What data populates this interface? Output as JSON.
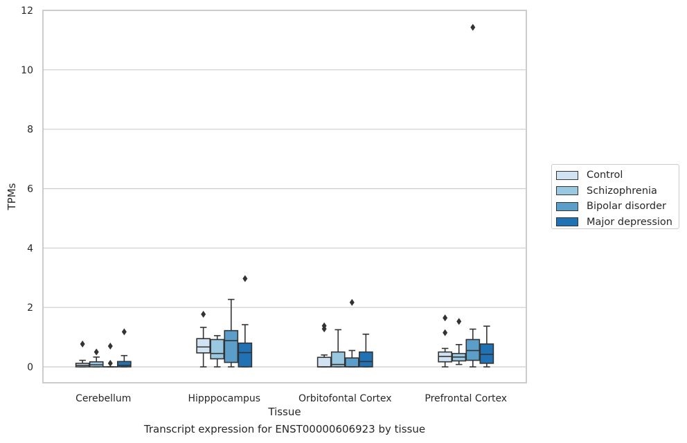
{
  "chart_data": {
    "type": "box",
    "caption": "Transcript expression for ENST00000606923 by tissue",
    "xlabel": "Tissue",
    "ylabel": "TPMs",
    "ylim": [
      -0.5,
      12
    ],
    "yticks": [
      "0",
      "2",
      "4",
      "6",
      "8",
      "10",
      "12"
    ],
    "categories": [
      "Cerebellum",
      "Hipppocampus",
      "Orbitofontal Cortex",
      "Prefrontal Cortex"
    ],
    "grid": "horizontal",
    "legend_position": "right",
    "series": [
      {
        "name": "Control",
        "color": "#d1e2f2",
        "boxes": [
          {
            "q1": 0.0,
            "median": 0.05,
            "q3": 0.12,
            "whisker_low": 0.0,
            "whisker_high": 0.22,
            "outliers": [
              0.77
            ]
          },
          {
            "q1": 0.47,
            "median": 0.67,
            "q3": 0.95,
            "whisker_low": 0.0,
            "whisker_high": 1.33,
            "outliers": [
              1.77
            ]
          },
          {
            "q1": 0.0,
            "median": 0.0,
            "q3": 0.32,
            "whisker_low": 0.0,
            "whisker_high": 0.4,
            "outliers": [
              1.28,
              1.38
            ]
          },
          {
            "q1": 0.17,
            "median": 0.35,
            "q3": 0.5,
            "whisker_low": 0.0,
            "whisker_high": 0.62,
            "outliers": [
              1.15,
              1.65
            ]
          }
        ]
      },
      {
        "name": "Schizophrenia",
        "color": "#9ac8e0",
        "boxes": [
          {
            "q1": 0.0,
            "median": 0.07,
            "q3": 0.17,
            "whisker_low": 0.0,
            "whisker_high": 0.33,
            "outliers": [
              0.5
            ]
          },
          {
            "q1": 0.27,
            "median": 0.45,
            "q3": 0.92,
            "whisker_low": 0.0,
            "whisker_high": 1.05,
            "outliers": []
          },
          {
            "q1": 0.0,
            "median": 0.08,
            "q3": 0.5,
            "whisker_low": 0.0,
            "whisker_high": 1.25,
            "outliers": []
          },
          {
            "q1": 0.2,
            "median": 0.33,
            "q3": 0.45,
            "whisker_low": 0.08,
            "whisker_high": 0.75,
            "outliers": [
              1.53
            ]
          }
        ]
      },
      {
        "name": "Bipolar disorder",
        "color": "#5a9ec9",
        "boxes": [
          {
            "q1": 0.0,
            "median": 0.0,
            "q3": 0.0,
            "whisker_low": 0.0,
            "whisker_high": 0.0,
            "outliers": [
              0.12,
              0.7
            ]
          },
          {
            "q1": 0.15,
            "median": 0.88,
            "q3": 1.22,
            "whisker_low": 0.0,
            "whisker_high": 2.27,
            "outliers": []
          },
          {
            "q1": 0.0,
            "median": 0.0,
            "q3": 0.3,
            "whisker_low": 0.0,
            "whisker_high": 0.55,
            "outliers": [
              2.17
            ]
          },
          {
            "q1": 0.22,
            "median": 0.55,
            "q3": 0.92,
            "whisker_low": 0.0,
            "whisker_high": 1.27,
            "outliers": [
              11.43
            ]
          }
        ]
      },
      {
        "name": "Major depression",
        "color": "#2171b5",
        "boxes": [
          {
            "q1": 0.0,
            "median": 0.05,
            "q3": 0.18,
            "whisker_low": 0.0,
            "whisker_high": 0.38,
            "outliers": [
              1.18
            ]
          },
          {
            "q1": 0.0,
            "median": 0.48,
            "q3": 0.8,
            "whisker_low": 0.0,
            "whisker_high": 1.42,
            "outliers": [
              2.97
            ]
          },
          {
            "q1": 0.0,
            "median": 0.18,
            "q3": 0.5,
            "whisker_low": 0.0,
            "whisker_high": 1.1,
            "outliers": []
          },
          {
            "q1": 0.12,
            "median": 0.42,
            "q3": 0.77,
            "whisker_low": 0.0,
            "whisker_high": 1.37,
            "outliers": []
          }
        ]
      }
    ]
  }
}
